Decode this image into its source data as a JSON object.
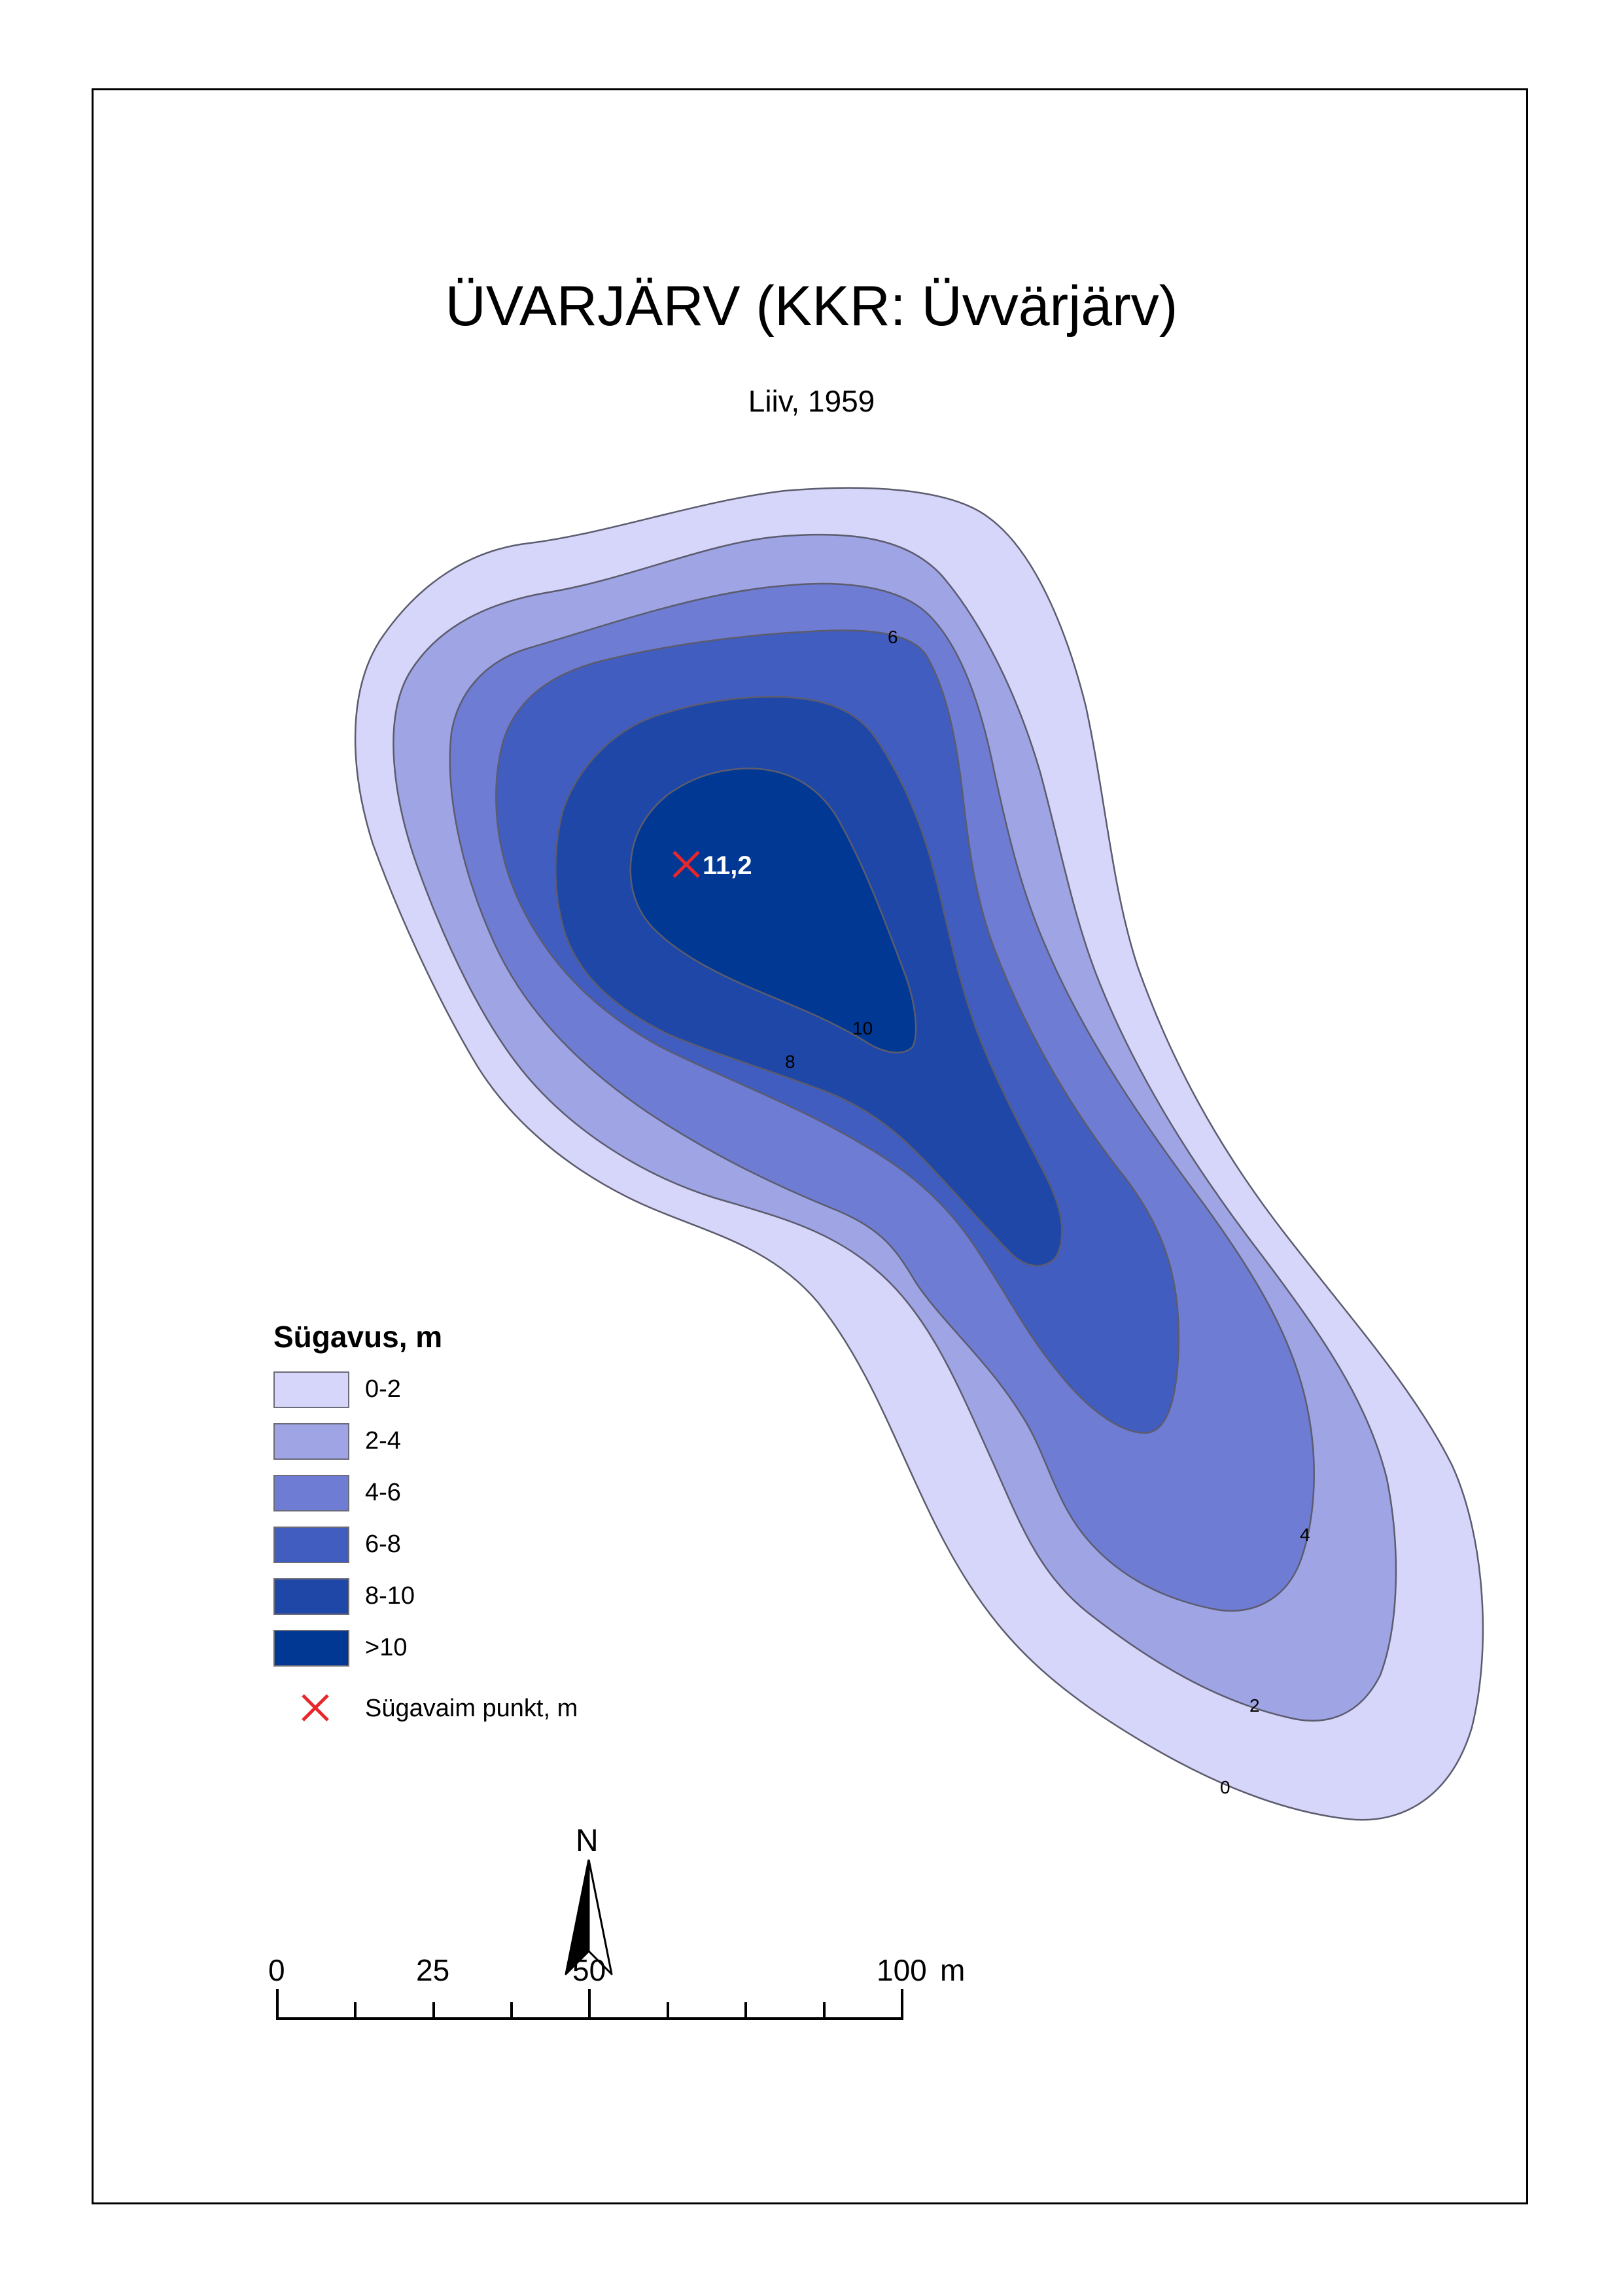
{
  "title": "ÜVARJÄRV (KKR: Üvvärjärv)",
  "subtitle": "Liiv, 1959",
  "contour_labels": [
    "6",
    "10",
    "8",
    "4",
    "2",
    "0"
  ],
  "deepest_point": {
    "label": "11,2",
    "color": "#e8262b"
  },
  "legend": {
    "title": "Sügavus, m",
    "items": [
      {
        "label": "0-2",
        "color": "#d5d6f9"
      },
      {
        "label": "2-4",
        "color": "#9ea4e4"
      },
      {
        "label": "4-6",
        "color": "#6e7dd3"
      },
      {
        "label": "6-8",
        "color": "#405dbf"
      },
      {
        "label": "8-10",
        "color": "#1f47a7"
      },
      {
        "label": ">10",
        "color": "#003893"
      }
    ],
    "point_label": "Sügavaim punkt, m"
  },
  "north_arrow": {
    "label": "N"
  },
  "scale_bar": {
    "labels": [
      "0",
      "25",
      "50",
      "100"
    ],
    "unit": "m"
  }
}
